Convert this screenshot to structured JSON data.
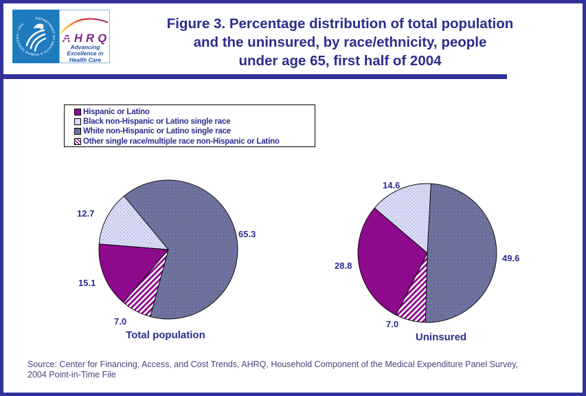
{
  "header": {
    "title_lines": [
      "Figure 3. Percentage distribution of total population",
      "and the uninsured, by race/ethnicity, people",
      "under age 65, first half of 2004"
    ],
    "logo": {
      "hhs_seal_text": "DEPARTMENT OF HEALTH & HUMAN SERVICES • USA",
      "ahrq_acronym": "AHRQ",
      "tagline_lines": [
        "Advancing",
        "Excellence in",
        "Health Care"
      ]
    }
  },
  "legend": {
    "items": [
      {
        "label": "Hispanic or Latino",
        "swatch": "hispanic"
      },
      {
        "label": "Black non-Hispanic or Latino single race",
        "swatch": "black"
      },
      {
        "label": "White non-Hispanic or Latino single race",
        "swatch": "white"
      },
      {
        "label": "Other single race/multiple race non-Hispanic or Latino",
        "swatch": "other"
      }
    ]
  },
  "chart_data": [
    {
      "type": "pie",
      "title": "Total population",
      "slices": [
        {
          "category": "Hispanic or Latino",
          "value": 15.1,
          "label": "15.1",
          "swatch": "hispanic"
        },
        {
          "category": "Black non-Hispanic or Latino single race",
          "value": 12.7,
          "label": "12.7",
          "swatch": "black"
        },
        {
          "category": "White non-Hispanic or Latino single race",
          "value": 65.3,
          "label": "65.3",
          "swatch": "white"
        },
        {
          "category": "Other single race/multiple race non-Hispanic or Latino",
          "value": 7.0,
          "label": "7.0",
          "swatch": "other"
        }
      ],
      "layout": {
        "start_angle_deg": 130,
        "clockwise_draw_order": [
          2,
          3,
          0,
          1
        ],
        "labels_outside": true
      }
    },
    {
      "type": "pie",
      "title": "Uninsured",
      "slices": [
        {
          "category": "Hispanic or Latino",
          "value": 28.8,
          "label": "28.8",
          "swatch": "hispanic"
        },
        {
          "category": "Black non-Hispanic or Latino single race",
          "value": 14.6,
          "label": "14.6",
          "swatch": "black"
        },
        {
          "category": "White non-Hispanic or Latino single race",
          "value": 49.6,
          "label": "49.6",
          "swatch": "white"
        },
        {
          "category": "Other single race/multiple race non-Hispanic or Latino",
          "value": 7.0,
          "label": "7.0",
          "swatch": "other"
        }
      ],
      "layout": {
        "start_angle_deg": 87,
        "clockwise_draw_order": [
          2,
          3,
          0,
          1
        ],
        "labels_outside": true
      }
    }
  ],
  "colors": {
    "navy_text": "#2c2c8e",
    "bar_navy": "#31319c",
    "hispanic": "#8d0a8d",
    "black_fill": "#dbddf6",
    "black_dot": "#9094ce",
    "white_fill": "#6e72a2",
    "white_dot": "#55587b",
    "white_dot2": "#7d7a63",
    "hatch_stripe": "#8d0a8d",
    "hatch_bg": "#ffffff",
    "slice_border": "#000000",
    "hhs_blue": "#1e7bbf",
    "ahrq_purple": "#7b2483",
    "tagline_blue": "#1d4f9f"
  },
  "source_lines": [
    "Source: Center for Financing, Access, and Cost Trends, AHRQ, Household Component of the Medical Expenditure Panel Survey,",
    "2004 Point-in-Time File"
  ]
}
